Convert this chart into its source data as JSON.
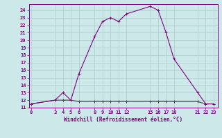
{
  "line1_x": [
    0,
    3,
    4,
    5,
    6,
    8,
    9,
    10,
    11,
    12,
    15,
    16,
    17,
    18,
    21,
    22,
    23
  ],
  "line1_y": [
    11.5,
    12.0,
    13.0,
    12.0,
    15.5,
    20.5,
    22.5,
    23.0,
    22.5,
    23.5,
    24.5,
    24.0,
    21.0,
    17.5,
    13.0,
    11.5,
    11.5
  ],
  "line2_x": [
    0,
    3,
    4,
    5,
    6,
    8,
    9,
    10,
    11,
    12,
    15,
    16,
    17,
    18,
    21,
    22,
    23
  ],
  "line2_y": [
    11.5,
    12.0,
    12.0,
    12.0,
    11.8,
    11.8,
    11.8,
    11.8,
    11.8,
    11.8,
    11.8,
    11.8,
    11.8,
    11.8,
    11.8,
    11.5,
    11.5
  ],
  "line_color": "#800080",
  "bg_color": "#cce8e8",
  "grid_color": "#aacccc",
  "xlabel": "Windchill (Refroidissement éolien,°C)",
  "ylim": [
    11,
    24.8
  ],
  "xlim": [
    -0.3,
    23.5
  ],
  "yticks": [
    11,
    12,
    13,
    14,
    15,
    16,
    17,
    18,
    19,
    20,
    21,
    22,
    23,
    24
  ],
  "xticks": [
    0,
    3,
    4,
    5,
    6,
    8,
    9,
    10,
    11,
    12,
    15,
    16,
    17,
    18,
    21,
    22,
    23
  ],
  "marker": "+"
}
